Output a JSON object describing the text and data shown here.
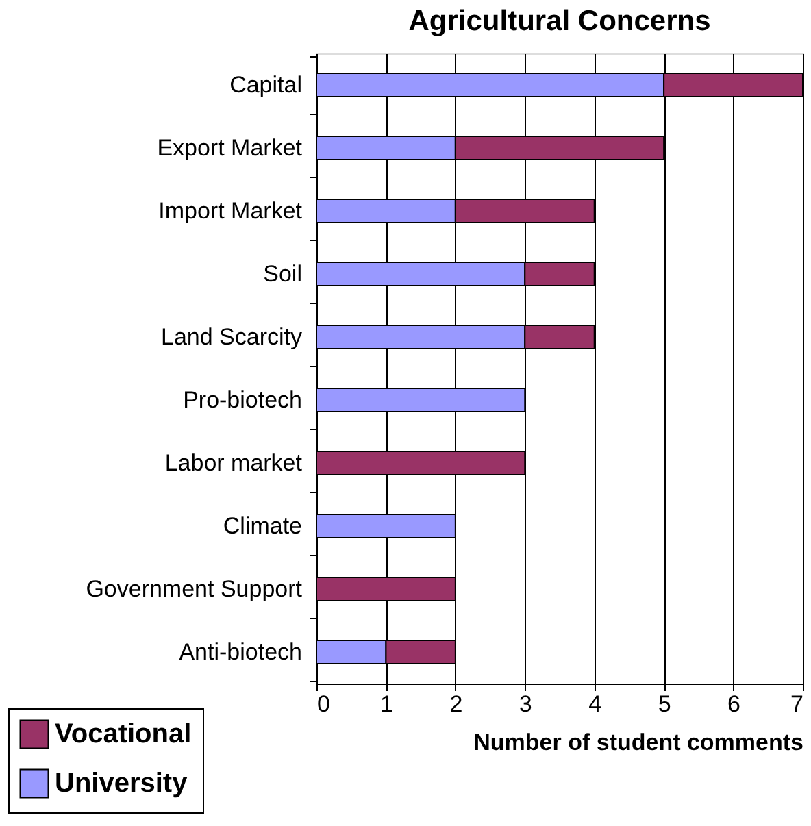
{
  "chart_data": {
    "type": "bar",
    "orientation": "horizontal",
    "stacked": true,
    "title": "Agricultural Concerns",
    "xlabel": "Number of student comments",
    "categories": [
      "Capital",
      "Export Market",
      "Import Market",
      "Soil",
      "Land Scarcity",
      "Pro-biotech",
      "Labor market",
      "Climate",
      "Government Support",
      "Anti-biotech"
    ],
    "series": [
      {
        "name": "University",
        "color": "#9999ff",
        "values": [
          5,
          2,
          2,
          3,
          3,
          3,
          0,
          2,
          0,
          1
        ]
      },
      {
        "name": "Vocational",
        "color": "#993366",
        "values": [
          2,
          3,
          2,
          1,
          1,
          0,
          3,
          0,
          2,
          1
        ]
      }
    ],
    "xlim": [
      0,
      7
    ],
    "xticks": [
      0,
      1,
      2,
      3,
      4,
      5,
      6,
      7
    ],
    "grid": "x",
    "legend": "bottom left"
  }
}
